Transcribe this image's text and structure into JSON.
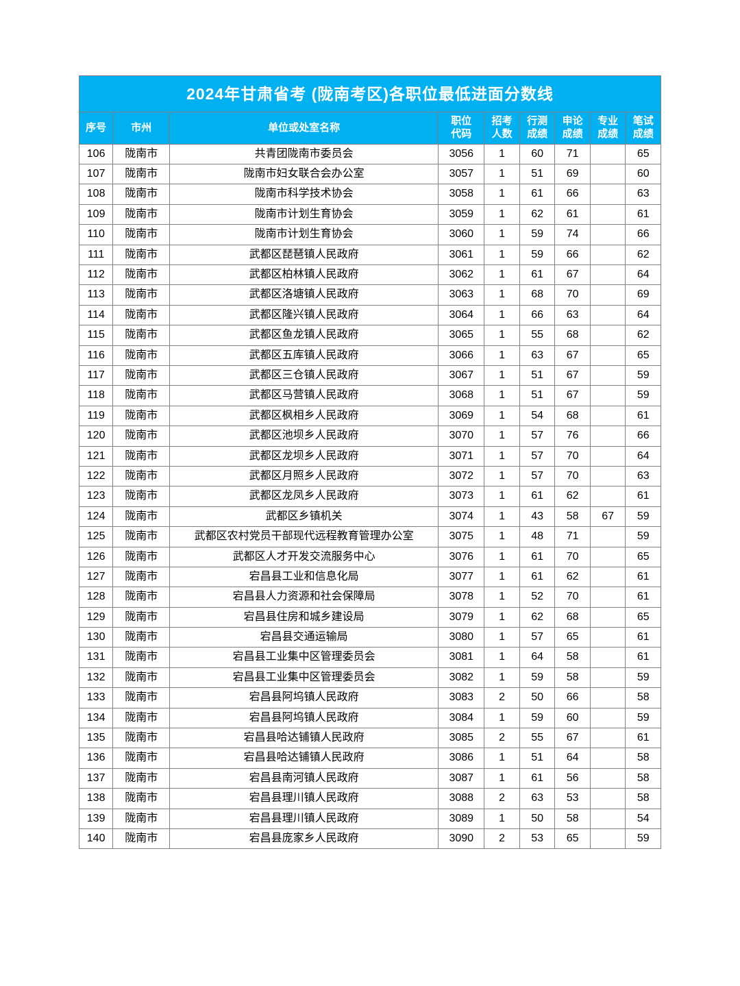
{
  "title": "2024年甘肃省考 (陇南考区)各职位最低进面分数线",
  "colors": {
    "header_bg": "#00b0f0",
    "header_text": "#ffffff",
    "border": "#7f7f7f",
    "cell_bg": "#ffffff",
    "cell_text": "#000000"
  },
  "columns": [
    "序号",
    "市州",
    "单位或处室名称",
    "职位\n代码",
    "招考\n人数",
    "行测\n成绩",
    "申论\n成绩",
    "专业\n成绩",
    "笔试\n成绩"
  ],
  "rows": [
    [
      "106",
      "陇南市",
      "共青团陇南市委员会",
      "3056",
      "1",
      "60",
      "71",
      "",
      "65"
    ],
    [
      "107",
      "陇南市",
      "陇南市妇女联合会办公室",
      "3057",
      "1",
      "51",
      "69",
      "",
      "60"
    ],
    [
      "108",
      "陇南市",
      "陇南市科学技术协会",
      "3058",
      "1",
      "61",
      "66",
      "",
      "63"
    ],
    [
      "109",
      "陇南市",
      "陇南市计划生育协会",
      "3059",
      "1",
      "62",
      "61",
      "",
      "61"
    ],
    [
      "110",
      "陇南市",
      "陇南市计划生育协会",
      "3060",
      "1",
      "59",
      "74",
      "",
      "66"
    ],
    [
      "111",
      "陇南市",
      "武都区琵琶镇人民政府",
      "3061",
      "1",
      "59",
      "66",
      "",
      "62"
    ],
    [
      "112",
      "陇南市",
      "武都区柏林镇人民政府",
      "3062",
      "1",
      "61",
      "67",
      "",
      "64"
    ],
    [
      "113",
      "陇南市",
      "武都区洛塘镇人民政府",
      "3063",
      "1",
      "68",
      "70",
      "",
      "69"
    ],
    [
      "114",
      "陇南市",
      "武都区隆兴镇人民政府",
      "3064",
      "1",
      "66",
      "63",
      "",
      "64"
    ],
    [
      "115",
      "陇南市",
      "武都区鱼龙镇人民政府",
      "3065",
      "1",
      "55",
      "68",
      "",
      "62"
    ],
    [
      "116",
      "陇南市",
      "武都区五库镇人民政府",
      "3066",
      "1",
      "63",
      "67",
      "",
      "65"
    ],
    [
      "117",
      "陇南市",
      "武都区三仓镇人民政府",
      "3067",
      "1",
      "51",
      "67",
      "",
      "59"
    ],
    [
      "118",
      "陇南市",
      "武都区马营镇人民政府",
      "3068",
      "1",
      "51",
      "67",
      "",
      "59"
    ],
    [
      "119",
      "陇南市",
      "武都区枫相乡人民政府",
      "3069",
      "1",
      "54",
      "68",
      "",
      "61"
    ],
    [
      "120",
      "陇南市",
      "武都区池坝乡人民政府",
      "3070",
      "1",
      "57",
      "76",
      "",
      "66"
    ],
    [
      "121",
      "陇南市",
      "武都区龙坝乡人民政府",
      "3071",
      "1",
      "57",
      "70",
      "",
      "64"
    ],
    [
      "122",
      "陇南市",
      "武都区月照乡人民政府",
      "3072",
      "1",
      "57",
      "70",
      "",
      "63"
    ],
    [
      "123",
      "陇南市",
      "武都区龙凤乡人民政府",
      "3073",
      "1",
      "61",
      "62",
      "",
      "61"
    ],
    [
      "124",
      "陇南市",
      "武都区乡镇机关",
      "3074",
      "1",
      "43",
      "58",
      "67",
      "59"
    ],
    [
      "125",
      "陇南市",
      "武都区农村党员干部现代远程教育管理办公室",
      "3075",
      "1",
      "48",
      "71",
      "",
      "59"
    ],
    [
      "126",
      "陇南市",
      "武都区人才开发交流服务中心",
      "3076",
      "1",
      "61",
      "70",
      "",
      "65"
    ],
    [
      "127",
      "陇南市",
      "宕昌县工业和信息化局",
      "3077",
      "1",
      "61",
      "62",
      "",
      "61"
    ],
    [
      "128",
      "陇南市",
      "宕昌县人力资源和社会保障局",
      "3078",
      "1",
      "52",
      "70",
      "",
      "61"
    ],
    [
      "129",
      "陇南市",
      "宕昌县住房和城乡建设局",
      "3079",
      "1",
      "62",
      "68",
      "",
      "65"
    ],
    [
      "130",
      "陇南市",
      "宕昌县交通运输局",
      "3080",
      "1",
      "57",
      "65",
      "",
      "61"
    ],
    [
      "131",
      "陇南市",
      "宕昌县工业集中区管理委员会",
      "3081",
      "1",
      "64",
      "58",
      "",
      "61"
    ],
    [
      "132",
      "陇南市",
      "宕昌县工业集中区管理委员会",
      "3082",
      "1",
      "59",
      "58",
      "",
      "59"
    ],
    [
      "133",
      "陇南市",
      "宕昌县阿坞镇人民政府",
      "3083",
      "2",
      "50",
      "66",
      "",
      "58"
    ],
    [
      "134",
      "陇南市",
      "宕昌县阿坞镇人民政府",
      "3084",
      "1",
      "59",
      "60",
      "",
      "59"
    ],
    [
      "135",
      "陇南市",
      "宕昌县哈达铺镇人民政府",
      "3085",
      "2",
      "55",
      "67",
      "",
      "61"
    ],
    [
      "136",
      "陇南市",
      "宕昌县哈达铺镇人民政府",
      "3086",
      "1",
      "51",
      "64",
      "",
      "58"
    ],
    [
      "137",
      "陇南市",
      "宕昌县南河镇人民政府",
      "3087",
      "1",
      "61",
      "56",
      "",
      "58"
    ],
    [
      "138",
      "陇南市",
      "宕昌县理川镇人民政府",
      "3088",
      "2",
      "63",
      "53",
      "",
      "58"
    ],
    [
      "139",
      "陇南市",
      "宕昌县理川镇人民政府",
      "3089",
      "1",
      "50",
      "58",
      "",
      "54"
    ],
    [
      "140",
      "陇南市",
      "宕昌县庞家乡人民政府",
      "3090",
      "2",
      "53",
      "65",
      "",
      "59"
    ]
  ]
}
